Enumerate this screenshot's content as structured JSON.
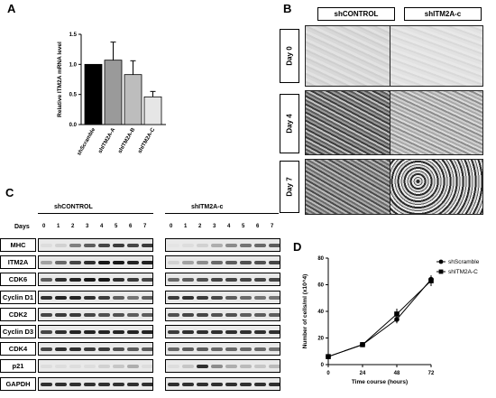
{
  "panels": {
    "a": "A",
    "b": "B",
    "c": "C",
    "d": "D"
  },
  "chart_data": [
    {
      "type": "bar",
      "categories": [
        "shScramble",
        "shITM2A-A",
        "shITM2A-B",
        "shITM2A-C"
      ],
      "values": [
        1.0,
        1.07,
        0.83,
        0.46
      ],
      "errors": [
        0.0,
        0.3,
        0.23,
        0.09
      ],
      "colors": [
        "#000000",
        "#9a9a9a",
        "#bdbdbd",
        "#e6e6e6"
      ],
      "ylabel": "Relative ITM2A mRNA level",
      "ylim": [
        0,
        1.5
      ],
      "yticks": [
        "0.0",
        "0.5",
        "1.0",
        "1.5"
      ]
    },
    {
      "type": "line",
      "xlabel": "Time course (hours)",
      "ylabel": "Number of cells/ml (x10^4)",
      "ylim": [
        0,
        80
      ],
      "xlim": [
        0,
        72
      ],
      "xticks": [
        "0",
        "24",
        "48",
        "72"
      ],
      "yticks": [
        "0",
        "20",
        "40",
        "60",
        "80"
      ],
      "legend_position": "right",
      "series": [
        {
          "name": "shScramble",
          "marker": "circle",
          "x": [
            0,
            24,
            48,
            72
          ],
          "y": [
            6,
            15,
            34,
            64
          ],
          "err": [
            0.8,
            1.5,
            3,
            3
          ]
        },
        {
          "name": "shITM2A-C",
          "marker": "square",
          "x": [
            0,
            24,
            48,
            72
          ],
          "y": [
            6,
            15,
            38,
            63
          ],
          "err": [
            0.8,
            1.5,
            4,
            4
          ]
        }
      ]
    }
  ],
  "micrographs": {
    "columns": [
      "shCONTROL",
      "shITM2A-c"
    ],
    "rows": [
      "Day 0",
      "Day 4",
      "Day 7"
    ]
  },
  "blots": {
    "days_label": "Days",
    "groups": [
      "shCONTROL",
      "shITM2A-c"
    ],
    "lanes": [
      "0",
      "1",
      "2",
      "3",
      "4",
      "5",
      "6",
      "7"
    ],
    "proteins": [
      "MHC",
      "ITM2A",
      "CDK6",
      "Cyclin D1",
      "CDK2",
      "Cyclin D3",
      "CDK4",
      "p21",
      "GAPDH"
    ],
    "intensity": {
      "MHC": [
        [
          0.05,
          0.1,
          0.45,
          0.6,
          0.7,
          0.75,
          0.7,
          0.75
        ],
        [
          0.02,
          0.05,
          0.1,
          0.25,
          0.4,
          0.5,
          0.55,
          0.6
        ]
      ],
      "ITM2A": [
        [
          0.3,
          0.55,
          0.7,
          0.8,
          0.9,
          0.9,
          0.85,
          0.85
        ],
        [
          0.1,
          0.3,
          0.4,
          0.55,
          0.6,
          0.65,
          0.65,
          0.7
        ]
      ],
      "CDK6": [
        [
          0.6,
          0.8,
          0.85,
          0.9,
          0.9,
          0.8,
          0.75,
          0.7
        ],
        [
          0.55,
          0.6,
          0.65,
          0.7,
          0.7,
          0.7,
          0.7,
          0.7
        ]
      ],
      "Cyclin D1": [
        [
          0.8,
          0.85,
          0.85,
          0.8,
          0.75,
          0.6,
          0.5,
          0.6
        ],
        [
          0.75,
          0.8,
          0.75,
          0.7,
          0.6,
          0.55,
          0.5,
          0.5
        ]
      ],
      "CDK2": [
        [
          0.7,
          0.75,
          0.75,
          0.7,
          0.65,
          0.65,
          0.6,
          0.6
        ],
        [
          0.65,
          0.7,
          0.7,
          0.65,
          0.65,
          0.6,
          0.6,
          0.6
        ]
      ],
      "Cyclin D3": [
        [
          0.7,
          0.8,
          0.85,
          0.85,
          0.85,
          0.85,
          0.85,
          0.85
        ],
        [
          0.75,
          0.8,
          0.8,
          0.8,
          0.8,
          0.8,
          0.8,
          0.8
        ]
      ],
      "CDK4": [
        [
          0.7,
          0.8,
          0.8,
          0.75,
          0.75,
          0.65,
          0.6,
          0.6
        ],
        [
          0.55,
          0.6,
          0.6,
          0.55,
          0.55,
          0.55,
          0.55,
          0.5
        ]
      ],
      "p21": [
        [
          0.05,
          0.05,
          0.05,
          0.05,
          0.1,
          0.15,
          0.25,
          0.05
        ],
        [
          0.05,
          0.15,
          0.8,
          0.4,
          0.25,
          0.2,
          0.15,
          0.2
        ]
      ],
      "GAPDH": [
        [
          0.8,
          0.8,
          0.8,
          0.8,
          0.8,
          0.8,
          0.8,
          0.8
        ],
        [
          0.8,
          0.8,
          0.8,
          0.8,
          0.8,
          0.8,
          0.8,
          0.8
        ]
      ]
    }
  }
}
